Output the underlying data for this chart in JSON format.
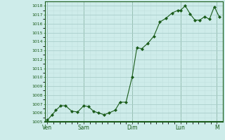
{
  "background_color": "#ceecea",
  "grid_color_major": "#aaceca",
  "grid_color_minor": "#c0e0de",
  "line_color": "#1a5c1a",
  "marker_color": "#1a5c1a",
  "tick_label_color": "#1a5c1a",
  "spine_color": "#1a5c1a",
  "ylim": [
    1005,
    1018.5
  ],
  "yticks": [
    1005,
    1006,
    1007,
    1008,
    1009,
    1010,
    1011,
    1012,
    1013,
    1014,
    1015,
    1016,
    1017,
    1018
  ],
  "x_day_labels": [
    "Ven",
    "Sam",
    "Dim",
    "Lun",
    "M"
  ],
  "x_day_ticks": [
    0,
    3,
    7,
    11,
    14
  ],
  "xlim": [
    -0.2,
    14.5
  ],
  "data_x": [
    0.0,
    0.4,
    0.7,
    1.1,
    1.5,
    2.0,
    2.5,
    3.0,
    3.4,
    3.8,
    4.2,
    4.7,
    5.1,
    5.6,
    6.0,
    6.5,
    7.0,
    7.4,
    7.8,
    8.3,
    8.8,
    9.3,
    9.8,
    10.3,
    10.8,
    11.0,
    11.4,
    11.8,
    12.2,
    12.6,
    13.0,
    13.4,
    13.8,
    14.2
  ],
  "data_y": [
    1005.2,
    1005.8,
    1006.3,
    1006.8,
    1006.8,
    1006.2,
    1006.1,
    1006.8,
    1006.7,
    1006.2,
    1006.0,
    1005.8,
    1006.0,
    1006.3,
    1007.2,
    1007.2,
    1010.0,
    1013.3,
    1013.2,
    1013.8,
    1014.6,
    1016.2,
    1016.6,
    1017.2,
    1017.5,
    1017.5,
    1018.0,
    1017.1,
    1016.4,
    1016.4,
    1016.8,
    1016.5,
    1017.9,
    1016.8
  ]
}
